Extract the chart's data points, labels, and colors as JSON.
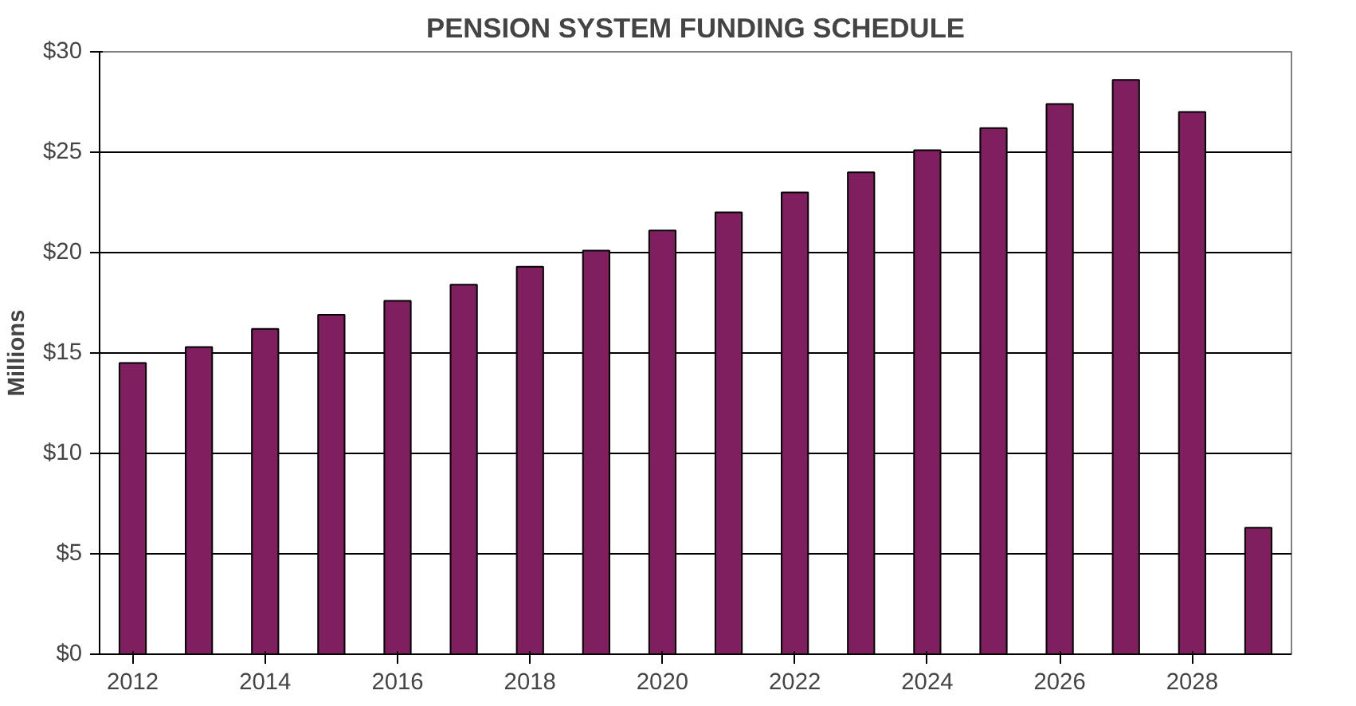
{
  "chart_data": {
    "type": "bar",
    "title": "PENSION SYSTEM FUNDING SCHEDULE",
    "ylabel": "Millions",
    "categories": [
      "2012",
      null,
      "2014",
      null,
      "2016",
      null,
      "2018",
      null,
      "2020",
      null,
      "2022",
      null,
      "2024",
      null,
      "2026",
      null,
      "2028",
      null
    ],
    "values": [
      14.5,
      15.3,
      16.2,
      16.9,
      17.6,
      18.4,
      19.3,
      20.1,
      21.1,
      22.0,
      23.0,
      24.0,
      25.1,
      26.2,
      27.4,
      28.6,
      27.0,
      6.3
    ],
    "color": "#7f1f5f",
    "ylim": [
      0,
      30
    ],
    "yticks": [
      {
        "value": 0,
        "label": "$0"
      },
      {
        "value": 5,
        "label": "$5"
      },
      {
        "value": 10,
        "label": "$10"
      },
      {
        "value": 15,
        "label": "$15"
      },
      {
        "value": 20,
        "label": "$20"
      },
      {
        "value": 25,
        "label": "$25"
      },
      {
        "value": 30,
        "label": "$30"
      }
    ],
    "grid": "y"
  }
}
